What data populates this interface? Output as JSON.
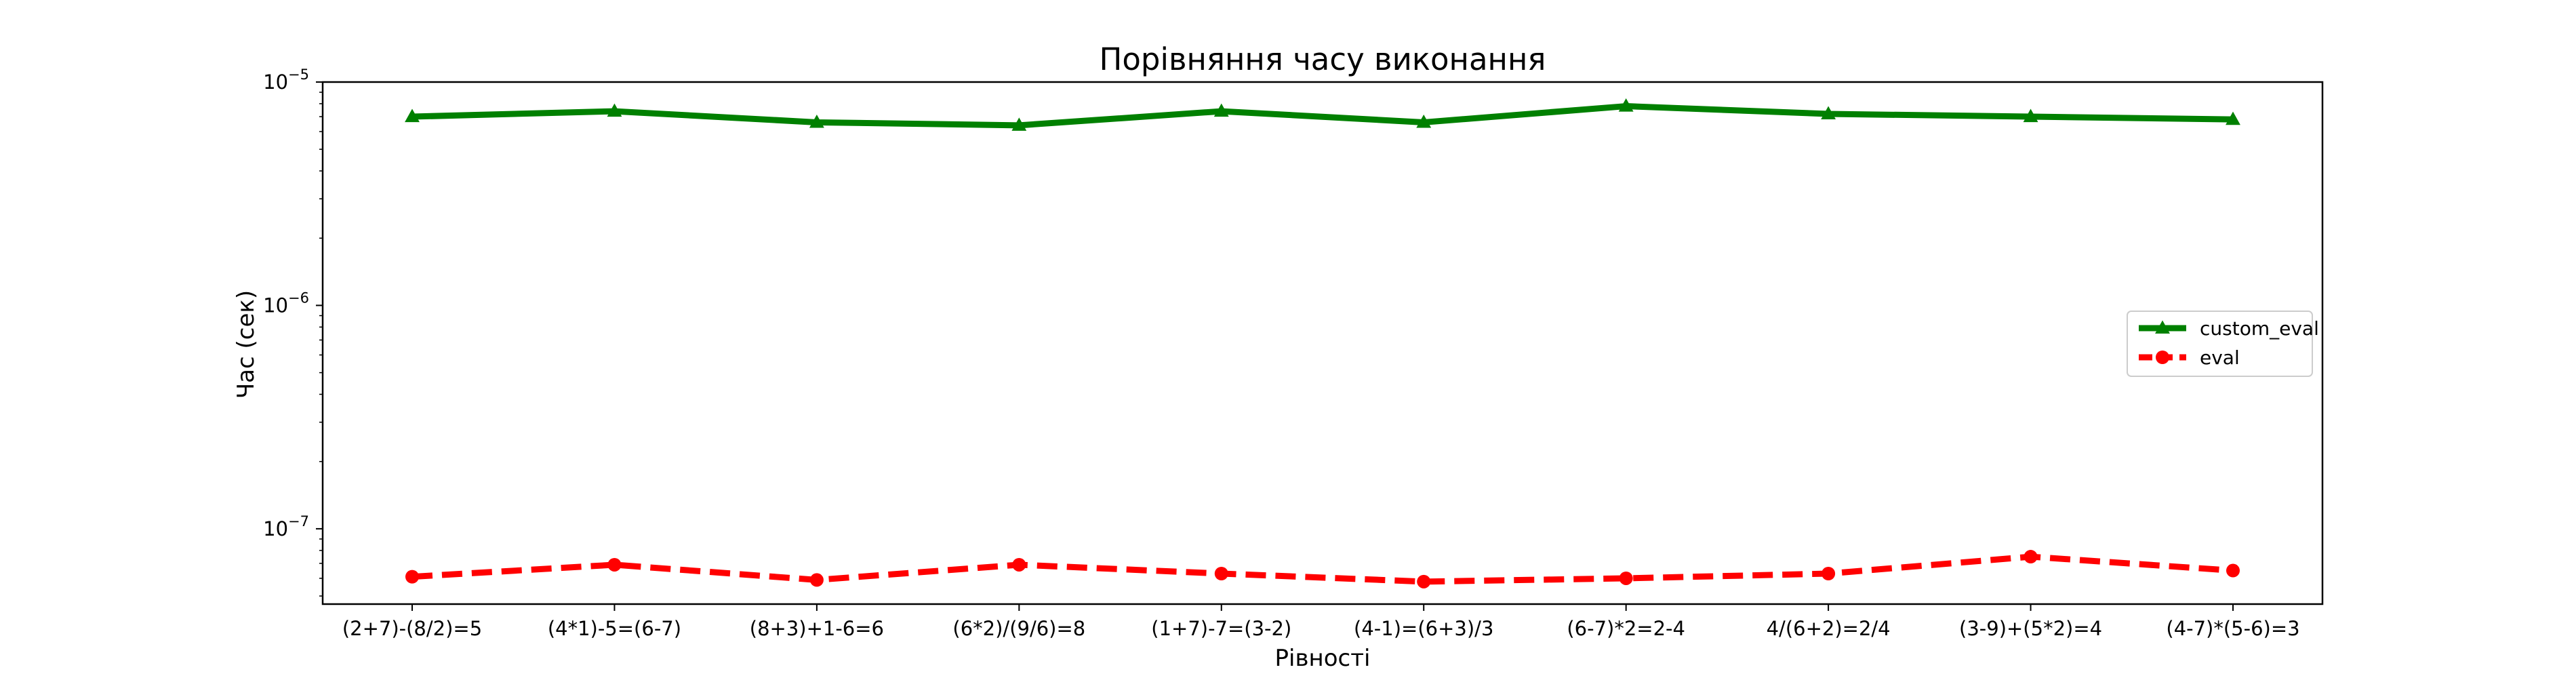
{
  "chart_data": {
    "type": "line",
    "title": "Порівняння часу виконання",
    "xlabel": "Рівності",
    "ylabel": "Час (сек)",
    "yscale": "log",
    "ylim": [
      4.6e-08,
      1e-05
    ],
    "y_ticks": [
      {
        "base": "10",
        "exp": "−7",
        "value": 1e-07
      },
      {
        "base": "10",
        "exp": "−6",
        "value": 1e-06
      },
      {
        "base": "10",
        "exp": "−5",
        "value": 1e-05
      }
    ],
    "categories": [
      "(2+7)-(8/2)=5",
      "(4*1)-5=(6-7)",
      "(8+3)+1-6=6",
      "(6*2)/(9/6)=8",
      "(1+7)-7=(3-2)",
      "(4-1)=(6+3)/3",
      "(6-7)*2=2-4",
      "4/(6+2)=2/4",
      "(3-9)+(5*2)=4",
      "(4-7)*(5-6)=3"
    ],
    "series": [
      {
        "name": "custom_eval",
        "color": "#008000",
        "style": "solid",
        "marker": "triangle",
        "values": [
          7e-06,
          7.4e-06,
          6.6e-06,
          6.4e-06,
          7.4e-06,
          6.6e-06,
          7.8e-06,
          7.2e-06,
          7e-06,
          6.8e-06
        ]
      },
      {
        "name": "eval",
        "color": "#ff0000",
        "style": "dashed",
        "marker": "circle",
        "values": [
          6.1e-08,
          6.9e-08,
          5.9e-08,
          6.9e-08,
          6.3e-08,
          5.8e-08,
          6e-08,
          6.3e-08,
          7.5e-08,
          6.5e-08
        ]
      }
    ],
    "legend_position": "center-right",
    "grid": false
  }
}
